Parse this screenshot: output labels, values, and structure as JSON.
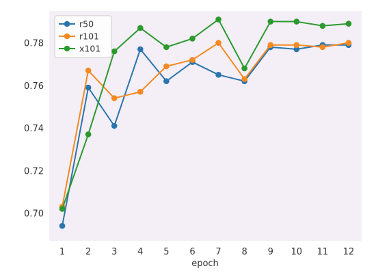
{
  "chart_data": {
    "type": "line",
    "xlabel": "epoch",
    "ylabel": "",
    "x": [
      1,
      2,
      3,
      4,
      5,
      6,
      7,
      8,
      9,
      10,
      11,
      12
    ],
    "xlim": [
      0.5,
      12.5
    ],
    "ylim": [
      0.687,
      0.795
    ],
    "yticks": [
      0.7,
      0.72,
      0.74,
      0.76,
      0.78
    ],
    "ytick_labels": [
      "0.70",
      "0.72",
      "0.74",
      "0.76",
      "0.78"
    ],
    "xtick_labels": [
      "1",
      "2",
      "3",
      "4",
      "5",
      "6",
      "7",
      "8",
      "9",
      "10",
      "11",
      "12"
    ],
    "grid": false,
    "legend_position": "top-left",
    "background": "#f4eef6",
    "series": [
      {
        "name": "r50",
        "color": "#2a75ad",
        "values": [
          0.694,
          0.759,
          0.741,
          0.777,
          0.762,
          0.771,
          0.765,
          0.762,
          0.778,
          0.777,
          0.779,
          0.779
        ]
      },
      {
        "name": "r101",
        "color": "#f48a22",
        "values": [
          0.703,
          0.767,
          0.754,
          0.757,
          0.769,
          0.772,
          0.78,
          0.763,
          0.779,
          0.779,
          0.778,
          0.78
        ]
      },
      {
        "name": "x101",
        "color": "#2b9a2e",
        "values": [
          0.702,
          0.737,
          0.776,
          0.787,
          0.778,
          0.782,
          0.791,
          0.768,
          0.79,
          0.79,
          0.788,
          0.789
        ]
      }
    ]
  }
}
